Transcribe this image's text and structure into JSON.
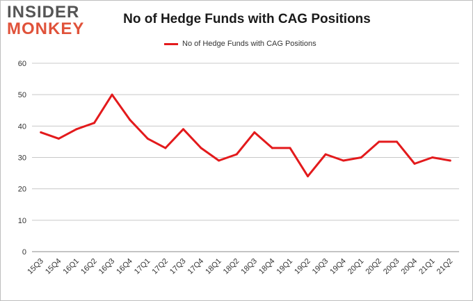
{
  "logo": {
    "line1": "INSIDER",
    "line2": "MONKEY"
  },
  "chart_data": {
    "type": "line",
    "title": "No of Hedge Funds with CAG Positions",
    "legend_position": "top-center",
    "grid": true,
    "xlabel": "",
    "ylabel": "",
    "ylim": [
      0,
      60
    ],
    "yticks": [
      0,
      10,
      20,
      30,
      40,
      50,
      60
    ],
    "categories": [
      "15Q3",
      "15Q4",
      "16Q1",
      "16Q2",
      "16Q3",
      "16Q4",
      "17Q1",
      "17Q2",
      "17Q3",
      "17Q4",
      "18Q1",
      "18Q2",
      "18Q3",
      "18Q4",
      "19Q1",
      "19Q2",
      "19Q3",
      "19Q4",
      "20Q1",
      "20Q2",
      "20Q3",
      "20Q4",
      "21Q1",
      "21Q2"
    ],
    "series": [
      {
        "name": "No of Hedge Funds with CAG Positions",
        "color": "#e31a1c",
        "values": [
          38,
          36,
          39,
          41,
          50,
          42,
          36,
          33,
          39,
          33,
          29,
          31,
          38,
          33,
          33,
          24,
          31,
          29,
          30,
          35,
          35,
          28,
          30,
          29
        ]
      }
    ]
  }
}
